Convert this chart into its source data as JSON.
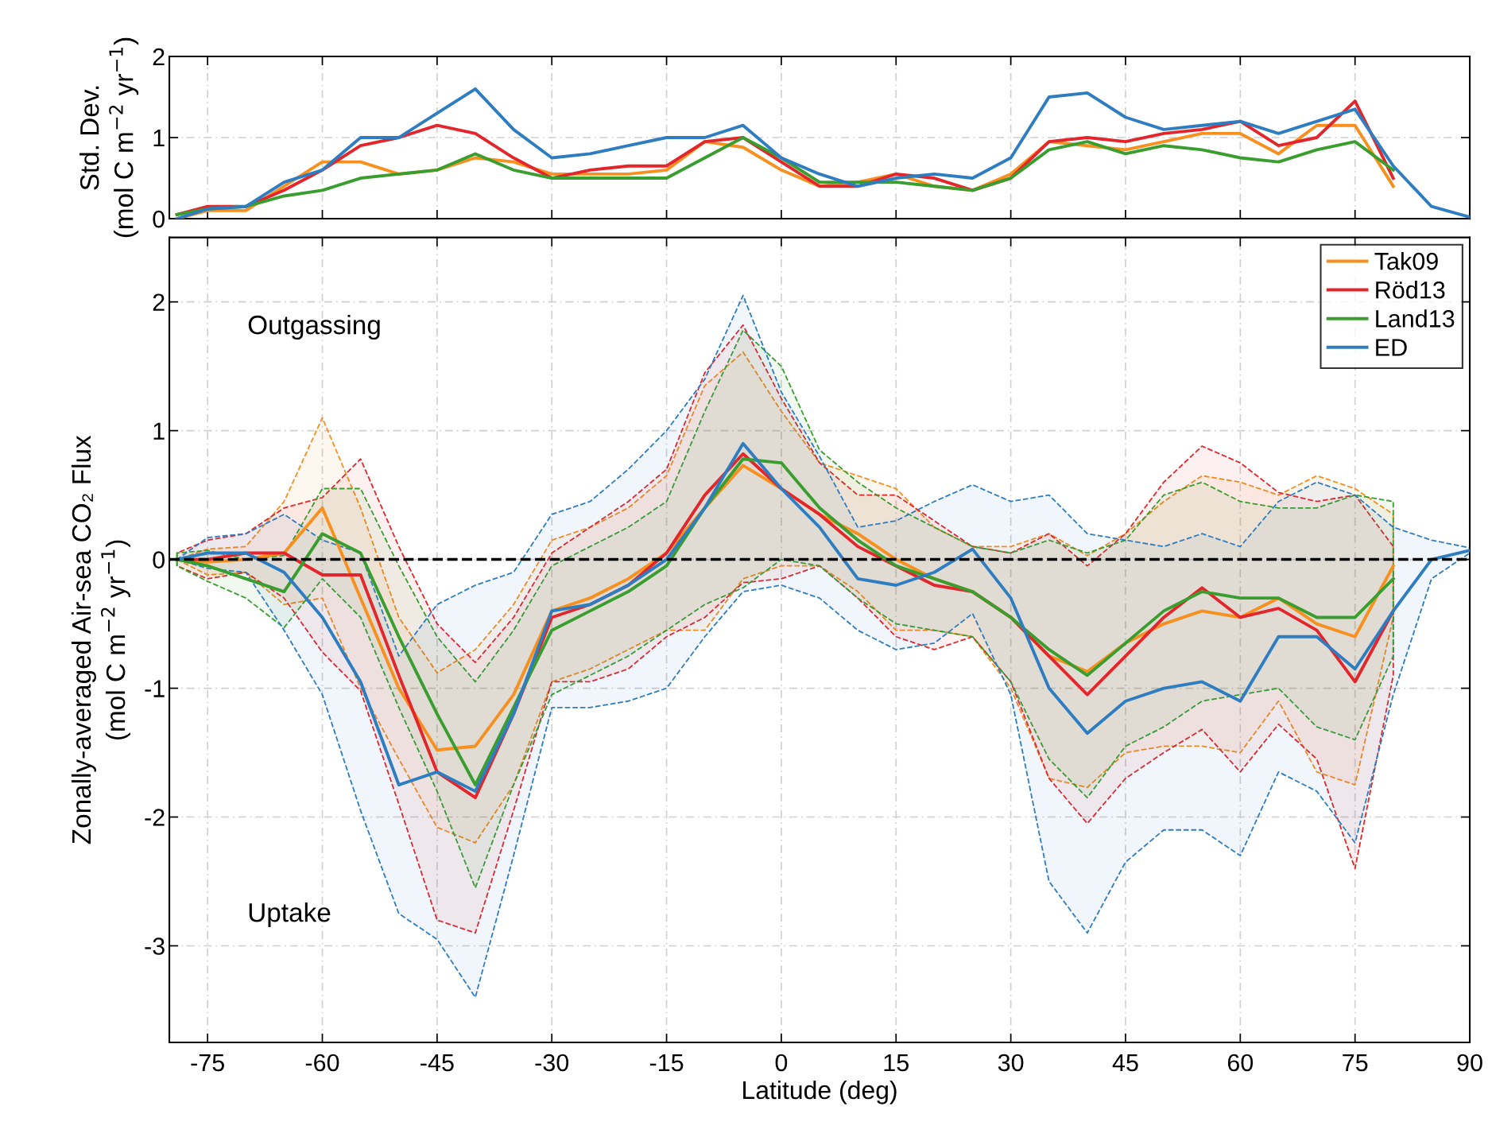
{
  "chart_data": [
    {
      "type": "line",
      "ylabel": "Std. Dev.\n(mol C m$^{−2}$ yr$^{−1}$)",
      "xlim": [
        -80,
        90
      ],
      "xticks": [
        -75,
        -60,
        -45,
        -30,
        -15,
        0,
        15,
        30,
        45,
        60,
        75,
        90
      ],
      "ylim": [
        0,
        2
      ],
      "yticks": [
        0,
        1,
        2
      ],
      "tick_labels": "y",
      "grid": true,
      "legend": false,
      "line_style": "solid",
      "marker": "none",
      "x": [
        -79,
        -75,
        -70,
        -65,
        -60,
        -55,
        -50,
        -45,
        -40,
        -35,
        -30,
        -25,
        -20,
        -15,
        -10,
        -5,
        0,
        5,
        10,
        15,
        20,
        25,
        30,
        35,
        40,
        45,
        50,
        55,
        60,
        65,
        70,
        75,
        80
      ],
      "series": [
        {
          "color": "#f7901e",
          "values": [
            0,
            0.1,
            0.1,
            0.4,
            0.7,
            0.7,
            0.55,
            0.6,
            0.75,
            0.7,
            0.55,
            0.55,
            0.55,
            0.6,
            0.95,
            0.88,
            0.6,
            0.4,
            0.45,
            0.55,
            0.4,
            0.35,
            0.55,
            0.95,
            0.9,
            0.85,
            0.95,
            1.05,
            1.05,
            0.8,
            1.15,
            1.15,
            0.4
          ]
        },
        {
          "color": "#e3262b",
          "values": [
            0.05,
            0.15,
            0.15,
            0.35,
            0.6,
            0.9,
            1.0,
            1.15,
            1.05,
            0.75,
            0.5,
            0.6,
            0.65,
            0.65,
            0.95,
            1.0,
            0.7,
            0.4,
            0.4,
            0.55,
            0.5,
            0.35,
            0.5,
            0.95,
            1.0,
            0.95,
            1.05,
            1.1,
            1.2,
            0.9,
            1.0,
            1.45,
            0.5
          ]
        },
        {
          "color": "#3a9d2f",
          "values": [
            0.05,
            0.12,
            0.15,
            0.28,
            0.35,
            0.5,
            0.55,
            0.6,
            0.8,
            0.6,
            0.5,
            0.5,
            0.5,
            0.5,
            0.75,
            1.0,
            0.75,
            0.45,
            0.45,
            0.45,
            0.4,
            0.35,
            0.5,
            0.85,
            0.95,
            0.8,
            0.9,
            0.85,
            0.75,
            0.7,
            0.85,
            0.95,
            0.6
          ]
        },
        {
          "color": "#2e7dc0",
          "x": [
            -79,
            -75,
            -70,
            -65,
            -60,
            -55,
            -50,
            -45,
            -40,
            -35,
            -30,
            -25,
            -20,
            -15,
            -10,
            -5,
            0,
            5,
            10,
            15,
            20,
            25,
            30,
            35,
            40,
            45,
            50,
            55,
            60,
            65,
            70,
            75,
            80,
            85,
            90
          ],
          "values": [
            0,
            0.12,
            0.15,
            0.45,
            0.6,
            1.0,
            1.0,
            1.3,
            1.6,
            1.1,
            0.75,
            0.8,
            0.9,
            1.0,
            1.0,
            1.15,
            0.75,
            0.55,
            0.4,
            0.5,
            0.55,
            0.5,
            0.75,
            1.5,
            1.55,
            1.25,
            1.1,
            1.15,
            1.2,
            1.05,
            1.2,
            1.35,
            0.65,
            0.15,
            0.02
          ]
        }
      ]
    },
    {
      "type": "line",
      "xlabel": "Latitude (deg)",
      "ylabel": "Zonally-averaged Air-sea CO₂ Flux\n(mol C m$^{−2}$ yr$^{−1}$)",
      "xlim": [
        -80,
        90
      ],
      "xticks": [
        -75,
        -60,
        -45,
        -30,
        -15,
        0,
        15,
        30,
        45,
        60,
        75,
        90
      ],
      "ylim": [
        -3.75,
        2.5
      ],
      "yticks": [
        -3,
        -2,
        -1,
        0,
        1,
        2
      ],
      "grid": true,
      "legend": "top right",
      "line_style": "solid",
      "marker": "none",
      "annotations": [
        "Outgassing",
        "Uptake"
      ],
      "ref_lines": [
        {
          "axis": "y",
          "value": 0,
          "color": "#000000",
          "line_style": "dashed"
        }
      ],
      "x": [
        -79,
        -75,
        -70,
        -65,
        -60,
        -55,
        -50,
        -45,
        -40,
        -35,
        -30,
        -25,
        -20,
        -15,
        -10,
        -5,
        0,
        5,
        10,
        15,
        20,
        25,
        30,
        35,
        40,
        45,
        50,
        55,
        60,
        65,
        70,
        75,
        80
      ],
      "series": [
        {
          "name": "Tak09",
          "color": "#f7901e",
          "values": [
            0,
            -0.02,
            0,
            0.05,
            0.4,
            -0.3,
            -1.0,
            -1.48,
            -1.45,
            -1.05,
            -0.4,
            -0.3,
            -0.15,
            0.05,
            0.4,
            0.73,
            0.55,
            0.35,
            0.2,
            0,
            -0.15,
            -0.25,
            -0.45,
            -0.75,
            -0.87,
            -0.65,
            -0.5,
            -0.4,
            -0.45,
            -0.3,
            -0.5,
            -0.6,
            -0.05
          ],
          "lower": [
            0,
            -0.12,
            -0.1,
            -0.35,
            -0.3,
            -1.0,
            -1.55,
            -2.08,
            -2.2,
            -1.75,
            -0.95,
            -0.85,
            -0.7,
            -0.55,
            -0.55,
            -0.15,
            -0.05,
            -0.05,
            -0.25,
            -0.55,
            -0.55,
            -0.6,
            -1.0,
            -1.7,
            -1.77,
            -1.5,
            -1.45,
            -1.45,
            -1.5,
            -1.1,
            -1.65,
            -1.75,
            -0.45
          ],
          "upper": [
            0,
            0.08,
            0.1,
            0.45,
            1.1,
            0.4,
            -0.45,
            -0.88,
            -0.7,
            -0.35,
            0.15,
            0.25,
            0.4,
            0.65,
            1.35,
            1.61,
            1.15,
            0.75,
            0.65,
            0.55,
            0.25,
            0.1,
            0.1,
            0.2,
            0.03,
            0.2,
            0.45,
            0.65,
            0.6,
            0.5,
            0.65,
            0.55,
            0.35
          ]
        },
        {
          "name": "Röd13",
          "color": "#e3262b",
          "values": [
            0,
            0,
            0.05,
            0.05,
            -0.12,
            -0.12,
            -0.9,
            -1.65,
            -1.85,
            -1.2,
            -0.45,
            -0.35,
            -0.2,
            0.05,
            0.5,
            0.82,
            0.55,
            0.35,
            0.1,
            -0.05,
            -0.2,
            -0.25,
            -0.45,
            -0.75,
            -1.05,
            -0.75,
            -0.45,
            -0.22,
            -0.45,
            -0.38,
            -0.55,
            -0.95,
            -0.4
          ],
          "lower": [
            -0.05,
            -0.15,
            -0.1,
            -0.3,
            -0.72,
            -1.02,
            -1.9,
            -2.8,
            -2.9,
            -1.95,
            -0.95,
            -0.95,
            -0.85,
            -0.6,
            -0.45,
            -0.18,
            -0.15,
            -0.05,
            -0.3,
            -0.6,
            -0.7,
            -0.6,
            -0.95,
            -1.7,
            -2.05,
            -1.7,
            -1.5,
            -1.32,
            -1.65,
            -1.28,
            -1.55,
            -2.4,
            -0.9
          ],
          "upper": [
            0.05,
            0.15,
            0.2,
            0.4,
            0.48,
            0.78,
            0.1,
            -0.5,
            -0.8,
            -0.45,
            0.05,
            0.25,
            0.45,
            0.7,
            1.45,
            1.82,
            1.25,
            0.75,
            0.5,
            0.5,
            0.3,
            0.1,
            0.05,
            0.2,
            -0.05,
            0.2,
            0.6,
            0.88,
            0.75,
            0.52,
            0.45,
            0.5,
            0.1
          ]
        },
        {
          "name": "Land13",
          "color": "#3a9d2f",
          "values": [
            0,
            -0.05,
            -0.15,
            -0.25,
            0.2,
            0.05,
            -0.6,
            -1.2,
            -1.75,
            -1.15,
            -0.55,
            -0.4,
            -0.25,
            -0.05,
            0.4,
            0.78,
            0.75,
            0.4,
            0.15,
            -0.05,
            -0.15,
            -0.25,
            -0.45,
            -0.7,
            -0.9,
            -0.65,
            -0.4,
            -0.25,
            -0.3,
            -0.3,
            -0.45,
            -0.45,
            -0.15
          ],
          "lower": [
            -0.05,
            -0.17,
            -0.3,
            -0.53,
            -0.15,
            -0.45,
            -1.15,
            -1.8,
            -2.55,
            -1.75,
            -1.05,
            -0.9,
            -0.75,
            -0.55,
            -0.35,
            -0.22,
            0,
            -0.05,
            -0.3,
            -0.5,
            -0.55,
            -0.6,
            -0.95,
            -1.55,
            -1.85,
            -1.45,
            -1.3,
            -1.1,
            -1.05,
            -1.0,
            -1.3,
            -1.4,
            -0.75
          ],
          "upper": [
            0.05,
            0.07,
            0,
            0.03,
            0.55,
            0.55,
            -0.05,
            -0.6,
            -0.95,
            -0.55,
            -0.05,
            0.1,
            0.25,
            0.45,
            1.15,
            1.78,
            1.5,
            0.85,
            0.6,
            0.4,
            0.25,
            0.1,
            0.05,
            0.15,
            0.05,
            0.15,
            0.5,
            0.6,
            0.45,
            0.4,
            0.4,
            0.5,
            0.45
          ]
        },
        {
          "name": "ED",
          "color": "#2e7dc0",
          "x": [
            -79,
            -75,
            -70,
            -65,
            -60,
            -55,
            -50,
            -45,
            -40,
            -35,
            -30,
            -25,
            -20,
            -15,
            -10,
            -5,
            0,
            5,
            10,
            15,
            20,
            25,
            30,
            35,
            40,
            45,
            50,
            55,
            60,
            65,
            70,
            75,
            80,
            85,
            90
          ],
          "values": [
            0,
            0.05,
            0.05,
            -0.1,
            -0.45,
            -0.95,
            -1.75,
            -1.65,
            -1.8,
            -1.2,
            -0.4,
            -0.35,
            -0.2,
            0,
            0.4,
            0.9,
            0.55,
            0.25,
            -0.15,
            -0.2,
            -0.1,
            0.08,
            -0.3,
            -1.0,
            -1.35,
            -1.1,
            -1.0,
            -0.95,
            -1.1,
            -0.6,
            -0.6,
            -0.85,
            -0.4,
            0,
            0.07
          ],
          "lower": [
            0,
            -0.07,
            -0.1,
            -0.55,
            -1.05,
            -1.95,
            -2.75,
            -2.95,
            -3.4,
            -2.3,
            -1.15,
            -1.15,
            -1.1,
            -1.0,
            -0.6,
            -0.25,
            -0.2,
            -0.3,
            -0.55,
            -0.7,
            -0.65,
            -0.42,
            -1.05,
            -2.5,
            -2.9,
            -2.35,
            -2.1,
            -2.1,
            -2.3,
            -1.65,
            -1.8,
            -2.2,
            -1.05,
            -0.15,
            0.05
          ],
          "upper": [
            0,
            0.17,
            0.2,
            0.35,
            0.15,
            0.05,
            -0.75,
            -0.35,
            -0.2,
            -0.1,
            0.35,
            0.45,
            0.7,
            1.0,
            1.4,
            2.05,
            1.3,
            0.8,
            0.25,
            0.3,
            0.45,
            0.58,
            0.45,
            0.5,
            0.2,
            0.15,
            0.1,
            0.2,
            0.1,
            0.45,
            0.6,
            0.5,
            0.25,
            0.15,
            0.09
          ]
        }
      ]
    }
  ]
}
